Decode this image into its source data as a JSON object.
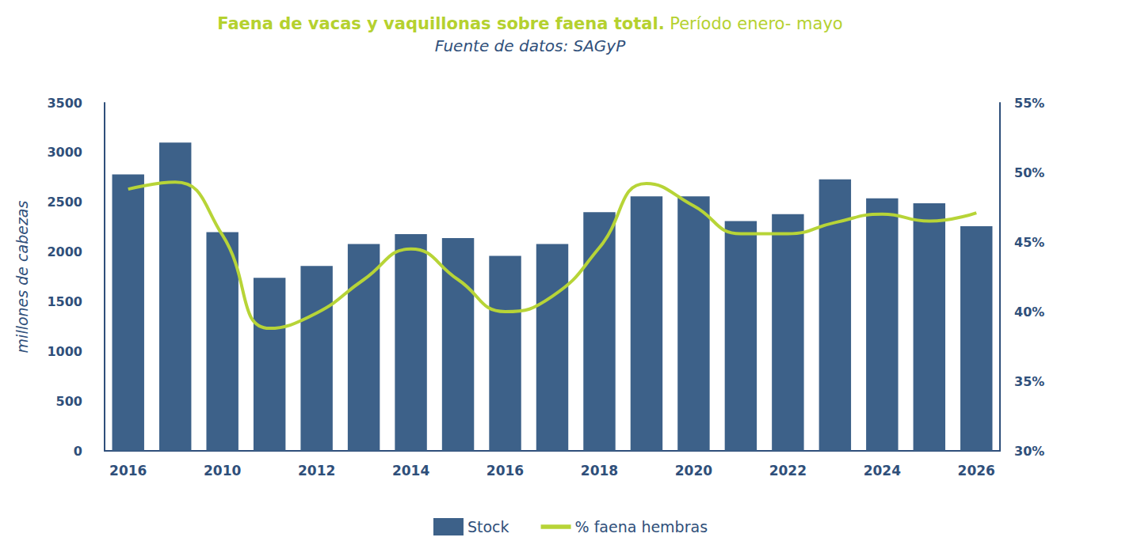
{
  "chart_data": {
    "type": "bar",
    "title": "Faena de vacas y vaquillonas sobre faena total. Período enero- mayo",
    "subtitle": "Fuente de datos: SAGyP",
    "y_label": "millones de cabezas",
    "categories": [
      "2016",
      null,
      "2010",
      null,
      "2012",
      null,
      "2014",
      null,
      "2016",
      null,
      "2018",
      null,
      "2020",
      null,
      "2022",
      null,
      "2024",
      null,
      "2026"
    ],
    "series": [
      {
        "name": "Stock",
        "type": "bar",
        "color": "#3d6189",
        "values": [
          2780,
          3100,
          2200,
          1740,
          1860,
          2080,
          2180,
          2140,
          1960,
          2080,
          2400,
          2560,
          2560,
          2310,
          2380,
          2730,
          2540,
          2490,
          2260
        ]
      },
      {
        "name": "% faena hembras",
        "type": "line",
        "axis": "y2",
        "color": "#b7d437",
        "line_style": "smooth",
        "values": [
          48.8,
          49.3,
          45.5,
          38.8,
          39.9,
          42.3,
          44.5,
          42.3,
          40.0,
          41.1,
          44.6,
          49.2,
          47.6,
          45.6,
          45.6,
          46.4,
          47.0,
          46.5,
          47.1
        ]
      }
    ],
    "ylim": [
      0,
      3500
    ],
    "yticks": [
      0,
      500,
      1000,
      1500,
      2000,
      2500,
      3000,
      3500
    ],
    "y2lim": [
      30,
      55
    ],
    "y2ticks": [
      {
        "value": 30,
        "label": "30%"
      },
      {
        "value": 35,
        "label": "35%"
      },
      {
        "value": 40,
        "label": "40%"
      },
      {
        "value": 45,
        "label": "45%"
      },
      {
        "value": 50,
        "label": "50%"
      },
      {
        "value": 55,
        "label": "55%"
      }
    ],
    "grid": false,
    "legend": "bottom"
  }
}
